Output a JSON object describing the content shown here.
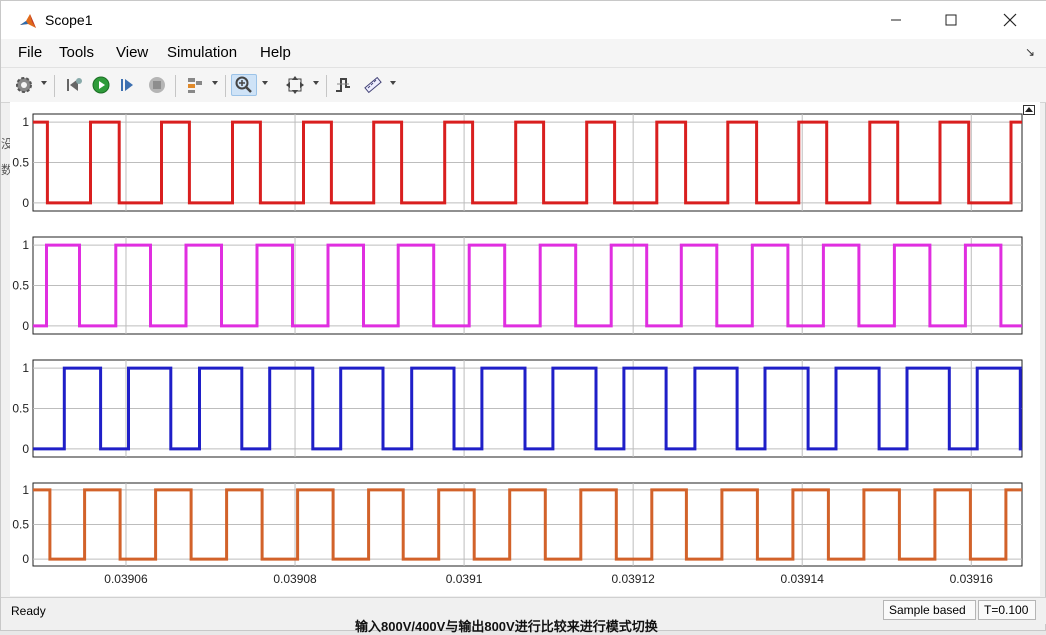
{
  "window": {
    "title": "Scope1"
  },
  "menu": {
    "file": "File",
    "tools": "Tools",
    "view": "View",
    "simulation": "Simulation",
    "help": "Help"
  },
  "toolbar": {
    "icons": [
      "gear-icon",
      "step-back-icon",
      "run-icon",
      "step-forward-icon",
      "stop-icon",
      "layout-icon",
      "zoom-in-icon",
      "autoscale-icon",
      "triggers-icon",
      "measurements-icon"
    ]
  },
  "status": {
    "ready": "Ready",
    "mode": "Sample based",
    "time": "T=0.100"
  },
  "background_text": "输入800V/400V与输出800V进行比较来进行模式切换",
  "colors": {
    "plot1": "#d91f1f",
    "plot2": "#e02ee0",
    "plot3": "#1f1fc8",
    "plot4": "#d2622a"
  },
  "chart_data": {
    "type": "line",
    "x_ticks": [
      "0.03906",
      "0.03908",
      "0.0391",
      "0.03912",
      "0.03914",
      "0.03916"
    ],
    "xlim": [
      0.039049,
      0.039166
    ],
    "y_ticks": [
      "0",
      "0.5",
      "1"
    ],
    "ylim": [
      -0.1,
      1.1
    ],
    "grid": true,
    "series": [
      {
        "color": "#d91f1f",
        "transitions": [
          0.0390507,
          0.0390558,
          0.0390592,
          0.0390642,
          0.0390675,
          0.0390726,
          0.0390759,
          0.039081,
          0.0390843,
          0.0390893,
          0.0390926,
          0.0390977,
          0.039101,
          0.0391061,
          0.0391094,
          0.0391145,
          0.0391178,
          0.0391228,
          0.0391262,
          0.0391312,
          0.0391346,
          0.0391396,
          0.0391429,
          0.039148,
          0.0391513,
          0.0391563,
          0.0391597,
          0.0391647
        ],
        "initial": 1
      },
      {
        "color": "#e02ee0",
        "transitions": [
          0.0390506,
          0.0390545,
          0.0390588,
          0.0390629,
          0.0390671,
          0.0390713,
          0.0390755,
          0.0390797,
          0.0390839,
          0.0390881,
          0.0390922,
          0.0390964,
          0.0391006,
          0.0391048,
          0.039109,
          0.0391132,
          0.0391174,
          0.0391216,
          0.0391257,
          0.0391299,
          0.0391341,
          0.0391383,
          0.0391425,
          0.0391467,
          0.0391509,
          0.0391551,
          0.0391593,
          0.0391635
        ],
        "initial": 0
      },
      {
        "color": "#1f1fc8",
        "transitions": [
          0.0390527,
          0.039057,
          0.0390603,
          0.0390653,
          0.0390687,
          0.0390737,
          0.039077,
          0.0390821,
          0.0390854,
          0.0390904,
          0.0390938,
          0.0390988,
          0.0391021,
          0.0391072,
          0.0391105,
          0.0391156,
          0.0391189,
          0.0391239,
          0.0391273,
          0.0391323,
          0.0391356,
          0.0391407,
          0.039144,
          0.0391491,
          0.0391524,
          0.0391574,
          0.0391607,
          0.0391658
        ],
        "initial": 0
      },
      {
        "color": "#d2622a",
        "transitions": [
          0.039051,
          0.0390551,
          0.0390593,
          0.0390635,
          0.0390677,
          0.0390719,
          0.0390761,
          0.0390803,
          0.0390845,
          0.0390887,
          0.0390928,
          0.039097,
          0.0391012,
          0.0391054,
          0.0391096,
          0.0391138,
          0.039118,
          0.0391222,
          0.0391263,
          0.0391305,
          0.0391347,
          0.0391389,
          0.0391431,
          0.0391473,
          0.0391515,
          0.0391557,
          0.0391599,
          0.0391641
        ],
        "initial": 1
      }
    ]
  }
}
